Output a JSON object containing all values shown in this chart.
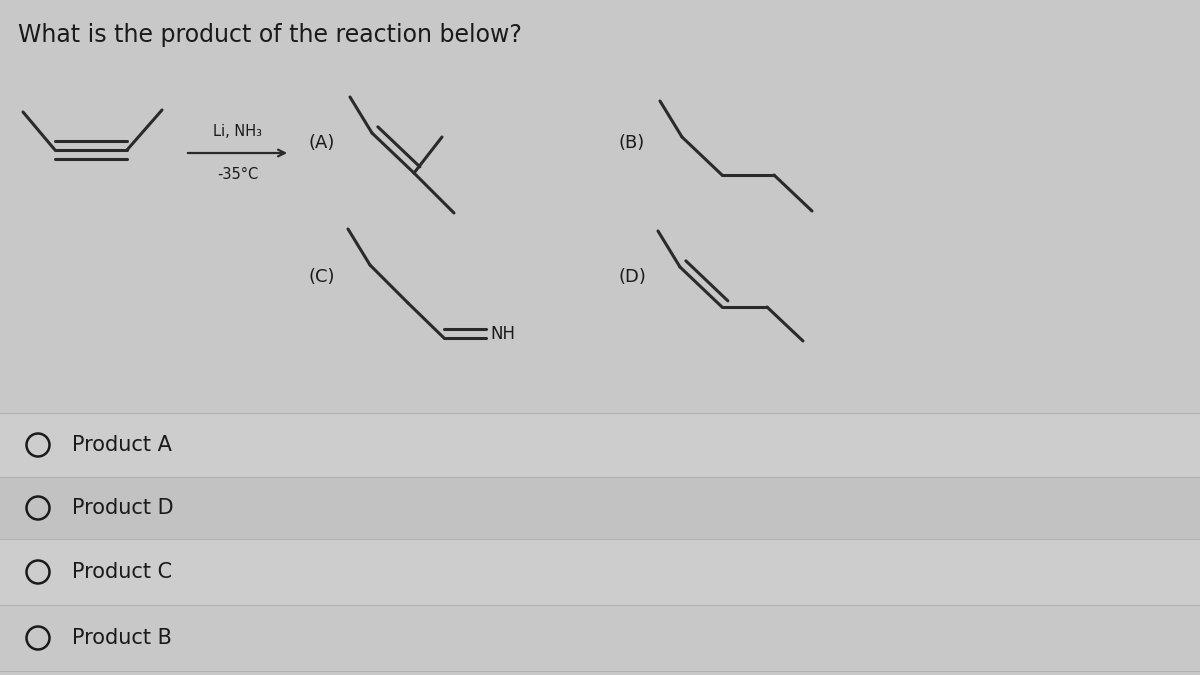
{
  "title": "What is the product of the reaction below?",
  "bg_top": "#c8c8c8",
  "bg_row_light": "#cbcbcb",
  "bg_row_mid": "#c0c0c0",
  "text_color": "#1a1a1a",
  "line_color": "#2a2a2a",
  "line_width": 2.2,
  "font_size_title": 17,
  "font_size_label": 13,
  "font_size_answer": 15,
  "answer_options": [
    "Product A",
    "Product D",
    "Product C",
    "Product B"
  ],
  "reagent_above": "Li, NH₃",
  "reagent_below": "-35°C"
}
